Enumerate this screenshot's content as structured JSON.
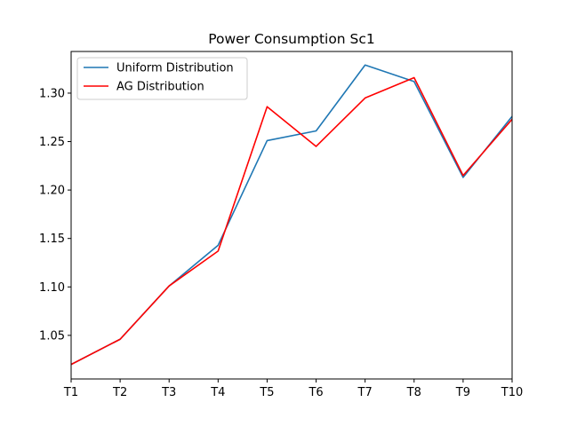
{
  "chart_data": {
    "type": "line",
    "title": "Power Consumption Sc1",
    "xlabel": "",
    "ylabel": "",
    "categories": [
      "T1",
      "T2",
      "T3",
      "T4",
      "T5",
      "T6",
      "T7",
      "T8",
      "T9",
      "T10"
    ],
    "ylim": [
      1.005,
      1.343
    ],
    "yticks": [
      "1.05",
      "1.10",
      "1.15",
      "1.20",
      "1.25",
      "1.30"
    ],
    "grid": false,
    "legend_position": "top-left",
    "series": [
      {
        "name": "Uniform Distribution",
        "color": "#1f77b4",
        "values": [
          1.02,
          1.046,
          1.101,
          1.143,
          1.251,
          1.261,
          1.329,
          1.312,
          1.213,
          1.276
        ]
      },
      {
        "name": "AG Distribution",
        "color": "#ff0000",
        "values": [
          1.02,
          1.046,
          1.101,
          1.137,
          1.286,
          1.245,
          1.295,
          1.316,
          1.215,
          1.273
        ]
      }
    ]
  }
}
